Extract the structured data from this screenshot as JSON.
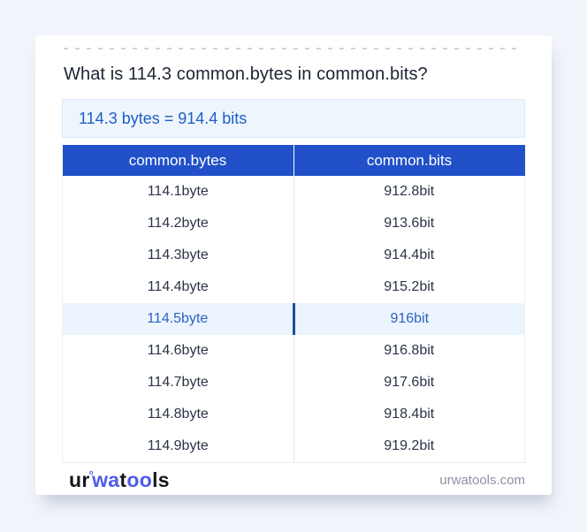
{
  "title": "What is 114.3 common.bytes in common.bits?",
  "result": {
    "text": "114.3 bytes = 914.4 bits"
  },
  "table": {
    "headers": [
      "common.bytes",
      "common.bits"
    ],
    "rows": [
      {
        "bytes": "114.1byte",
        "bits": "912.8bit",
        "highlighted": false
      },
      {
        "bytes": "114.2byte",
        "bits": "913.6bit",
        "highlighted": false
      },
      {
        "bytes": "114.3byte",
        "bits": "914.4bit",
        "highlighted": false
      },
      {
        "bytes": "114.4byte",
        "bits": "915.2bit",
        "highlighted": false
      },
      {
        "bytes": "114.5byte",
        "bits": "916bit",
        "highlighted": true
      },
      {
        "bytes": "114.6byte",
        "bits": "916.8bit",
        "highlighted": false
      },
      {
        "bytes": "114.7byte",
        "bits": "917.6bit",
        "highlighted": false
      },
      {
        "bytes": "114.8byte",
        "bits": "918.4bit",
        "highlighted": false
      },
      {
        "bytes": "114.9byte",
        "bits": "919.2bit",
        "highlighted": false
      }
    ]
  },
  "footer": {
    "logo": {
      "segments": [
        {
          "text": "ur",
          "style": "dark"
        },
        {
          "text": "°",
          "style": "ring"
        },
        {
          "text": "wa",
          "style": "blue"
        },
        {
          "text": "t",
          "style": "dark"
        },
        {
          "text": "oo",
          "style": "blue"
        },
        {
          "text": "ls",
          "style": "dark"
        }
      ]
    },
    "site": "urwatools.com"
  },
  "colors": {
    "header_blue": "#2150c9",
    "highlight_bg": "#ecf4fd",
    "highlight_text": "#2d62c0",
    "highlight_divider": "#1d4d9c",
    "result_bg": "#eef5fd",
    "result_border": "#d9e8f8",
    "result_text": "#1f5fc4",
    "logo_blue": "#4f5bea",
    "logo_dark": "#17181d",
    "page_bg": "#f1f4fa",
    "row_text": "#2b3446",
    "title_text": "#1c2433",
    "site_text": "#8d93a3"
  }
}
